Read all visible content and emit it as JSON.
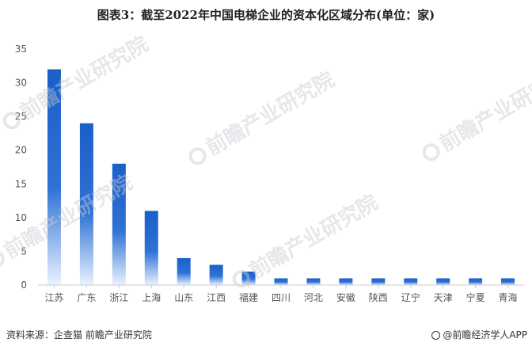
{
  "title": "图表3：截至2022年中国电梯企业的资本化区域分布(单位：家)",
  "source": "资料来源：企查猫 前瞻产业研究院",
  "brand": "@前瞻经济学人APP",
  "watermark": "前瞻产业研究院",
  "colors": {
    "bar_top": "#1a5fc8",
    "bar_bottom": "#ffffff",
    "axis": "#cccccc",
    "tick_text": "#555555"
  },
  "chart_data": {
    "type": "bar",
    "title": "图表3：截至2022年中国电梯企业的资本化区域分布(单位：家)",
    "xlabel": "",
    "ylabel": "",
    "ylim": [
      0,
      35
    ],
    "yticks": [
      0,
      5,
      10,
      15,
      20,
      25,
      30,
      35
    ],
    "grid": false,
    "categories": [
      "江苏",
      "广东",
      "浙江",
      "上海",
      "山东",
      "江西",
      "福建",
      "四川",
      "河北",
      "安徽",
      "陕西",
      "辽宁",
      "天津",
      "宁夏",
      "青海"
    ],
    "values": [
      32,
      24,
      18,
      11,
      4,
      3,
      2,
      1,
      1,
      1,
      1,
      1,
      1,
      1,
      1
    ]
  }
}
